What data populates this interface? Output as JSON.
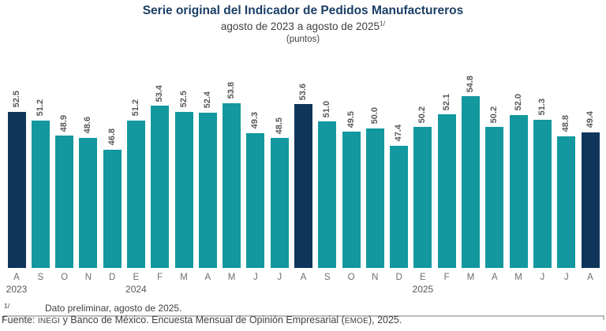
{
  "title": "Serie original del Indicador de Pedidos Manufactureros",
  "subtitle": "agosto de 2023 a agosto de 2025",
  "subtitle_footnote_marker": "1/",
  "units": "(puntos)",
  "chart_data": {
    "type": "bar",
    "categories": [
      "A",
      "S",
      "O",
      "N",
      "D",
      "E",
      "F",
      "M",
      "A",
      "M",
      "J",
      "J",
      "A",
      "S",
      "O",
      "N",
      "D",
      "E",
      "F",
      "M",
      "A",
      "M",
      "J",
      "J",
      "A"
    ],
    "values": [
      52.5,
      51.2,
      48.9,
      48.6,
      46.8,
      51.2,
      53.4,
      52.5,
      52.4,
      53.8,
      49.3,
      48.5,
      53.6,
      51.0,
      49.5,
      50.0,
      47.4,
      50.2,
      52.1,
      54.8,
      50.2,
      52.0,
      51.3,
      48.8,
      49.4
    ],
    "highlight_indices": [
      0,
      12,
      24
    ],
    "year_labels": [
      {
        "label": "2023",
        "index": 0
      },
      {
        "label": "2024",
        "index": 5
      },
      {
        "label": "2025",
        "index": 17
      }
    ],
    "bar_color": "#12989e",
    "highlight_color": "#10355a",
    "value_label_color": "#57585a",
    "ylim": [
      29,
      56
    ],
    "grid": false,
    "legend": "none",
    "value_labels": "rotated 90° above bars, one decimal",
    "title": "Serie original del Indicador de Pedidos Manufactureros",
    "xlabel": "",
    "ylabel": ""
  },
  "footnotes": {
    "marker": "1/",
    "note": "Dato preliminar, agosto de 2025.",
    "source_parts": [
      "Fuente: ",
      "INEGI",
      " y Banco de México. Encuesta Mensual de Opinión Empresarial (",
      "EMOE",
      "), 2025."
    ]
  }
}
